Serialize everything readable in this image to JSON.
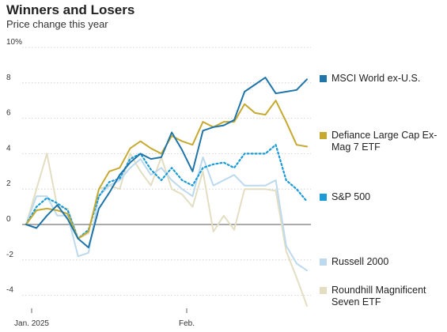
{
  "header": {
    "title": "Winners and Losers",
    "subtitle": "Price change this year"
  },
  "chart_data": {
    "type": "line",
    "title": "Winners and Losers",
    "subtitle": "Price change this year",
    "xlabel": "",
    "ylabel": "",
    "x_tick_labels": [
      "Jan. 2025",
      "Feb."
    ],
    "y_ticks": [
      {
        "value": 10,
        "label": "10%"
      },
      {
        "value": 8,
        "label": "8"
      },
      {
        "value": 6,
        "label": "6"
      },
      {
        "value": 4,
        "label": "4"
      },
      {
        "value": 2,
        "label": "2"
      },
      {
        "value": 0,
        "label": "0"
      },
      {
        "value": -2,
        "label": "-2"
      },
      {
        "value": -4,
        "label": "-4"
      }
    ],
    "ylim": [
      -5,
      10
    ],
    "grid": "horizontal dotted",
    "zero_line": true,
    "legend_position": "right",
    "series": [
      {
        "name": "MSCI World ex-U.S.",
        "legend_lines": [
          "MSCI World ex-U.S."
        ],
        "color": "#1f74a8",
        "style": "solid",
        "values": [
          0.0,
          -0.2,
          0.5,
          1.1,
          0.3,
          -0.8,
          -1.3,
          0.9,
          1.8,
          2.8,
          3.5,
          4.0,
          3.7,
          3.8,
          5.2,
          4.2,
          3.0,
          5.3,
          5.5,
          5.6,
          5.9,
          7.5,
          7.9,
          8.3,
          7.4,
          7.5,
          7.6,
          8.2
        ]
      },
      {
        "name": "Defiance Large Cap Ex-Mag 7 ETF",
        "legend_lines": [
          "Defiance Large Cap Ex-",
          "Mag 7 ETF"
        ],
        "color": "#c6a92f",
        "style": "solid",
        "values": [
          0.0,
          0.8,
          0.9,
          0.8,
          0.6,
          -0.8,
          -0.4,
          2.0,
          3.0,
          3.2,
          4.3,
          4.7,
          4.3,
          4.0,
          5.0,
          4.7,
          4.5,
          5.8,
          5.5,
          5.8,
          5.8,
          6.8,
          6.3,
          6.2,
          7.0,
          5.8,
          4.5,
          4.4
        ]
      },
      {
        "name": "S&P 500",
        "legend_lines": [
          "S&P 500"
        ],
        "color": "#1a9bd7",
        "style": "dotted",
        "values": [
          0.0,
          1.0,
          1.5,
          1.2,
          0.8,
          -0.8,
          -0.3,
          1.6,
          2.4,
          2.6,
          3.7,
          4.0,
          3.1,
          2.5,
          3.2,
          2.5,
          2.2,
          3.2,
          3.4,
          3.5,
          3.2,
          4.0,
          4.0,
          4.0,
          4.5,
          2.5,
          2.0,
          1.3
        ]
      },
      {
        "name": "Russell 2000",
        "legend_lines": [
          "Russell 2000"
        ],
        "color": "#bcd9ed",
        "style": "solid",
        "values": [
          0.0,
          1.6,
          1.6,
          0.5,
          0.5,
          -1.8,
          -1.6,
          1.6,
          2.2,
          2.5,
          3.2,
          3.7,
          2.8,
          3.2,
          2.5,
          2.0,
          1.6,
          3.8,
          2.2,
          2.5,
          2.8,
          2.2,
          2.2,
          2.2,
          2.5,
          -1.2,
          -2.2,
          -2.6
        ]
      },
      {
        "name": "Roundhill Magnificent Seven ETF",
        "legend_lines": [
          "Roundhill Magnificent",
          "Seven ETF"
        ],
        "color": "#e3dec1",
        "style": "solid",
        "values": [
          0.0,
          2.0,
          4.0,
          1.0,
          0.9,
          -0.8,
          -0.5,
          2.0,
          2.2,
          2.0,
          4.0,
          3.0,
          2.2,
          3.8,
          2.0,
          1.7,
          1.0,
          3.0,
          -0.4,
          0.5,
          -0.3,
          2.0,
          2.0,
          2.0,
          1.9,
          -1.5,
          -3.0,
          -4.6
        ]
      }
    ]
  }
}
